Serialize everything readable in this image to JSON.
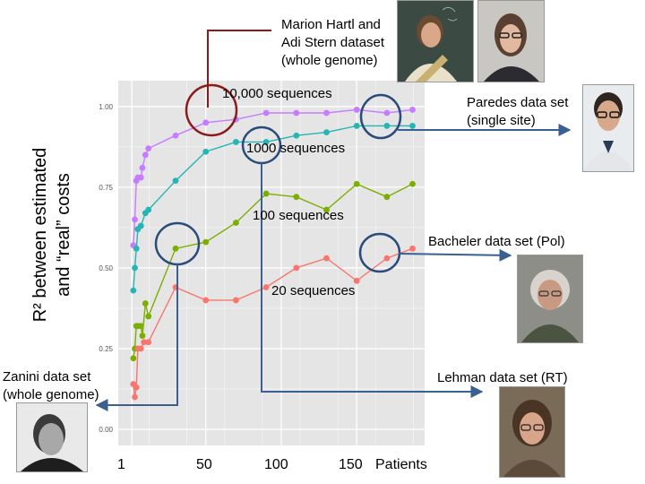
{
  "chart_data": {
    "type": "line",
    "ylabel_line1": "R² between estimated",
    "ylabel_line2": "and “real” costs",
    "xlabel": "Patients",
    "x_ticks": [
      1,
      50,
      100,
      150
    ],
    "y_ticks": [
      "0.00",
      "0.25",
      "0.50",
      "0.75",
      "1.00"
    ],
    "xlim": [
      -8,
      195
    ],
    "ylim": [
      -0.05,
      1.08
    ],
    "grid": true,
    "series": [
      {
        "name": "10,000 sequences",
        "color": "#c77cff",
        "points": [
          [
            2,
            0.57
          ],
          [
            3,
            0.65
          ],
          [
            4,
            0.77
          ],
          [
            5,
            0.78
          ],
          [
            7,
            0.78
          ],
          [
            8,
            0.81
          ],
          [
            10,
            0.85
          ],
          [
            12,
            0.87
          ],
          [
            30,
            0.91
          ],
          [
            50,
            0.95
          ],
          [
            70,
            0.96
          ],
          [
            90,
            0.98
          ],
          [
            110,
            0.98
          ],
          [
            130,
            0.98
          ],
          [
            150,
            0.99
          ],
          [
            170,
            0.98
          ],
          [
            187,
            0.99
          ]
        ]
      },
      {
        "name": "1000 sequences",
        "color": "#26b5b5",
        "points": [
          [
            2,
            0.43
          ],
          [
            3,
            0.5
          ],
          [
            4,
            0.56
          ],
          [
            5,
            0.62
          ],
          [
            7,
            0.63
          ],
          [
            10,
            0.67
          ],
          [
            12,
            0.68
          ],
          [
            30,
            0.77
          ],
          [
            50,
            0.86
          ],
          [
            70,
            0.89
          ],
          [
            90,
            0.89
          ],
          [
            110,
            0.91
          ],
          [
            130,
            0.92
          ],
          [
            150,
            0.94
          ],
          [
            170,
            0.94
          ],
          [
            187,
            0.94
          ]
        ]
      },
      {
        "name": "100 sequences",
        "color": "#7cae00",
        "points": [
          [
            2,
            0.22
          ],
          [
            3,
            0.25
          ],
          [
            4,
            0.32
          ],
          [
            5,
            0.32
          ],
          [
            7,
            0.32
          ],
          [
            8,
            0.29
          ],
          [
            10,
            0.39
          ],
          [
            12,
            0.35
          ],
          [
            30,
            0.56
          ],
          [
            50,
            0.58
          ],
          [
            70,
            0.64
          ],
          [
            90,
            0.73
          ],
          [
            110,
            0.72
          ],
          [
            130,
            0.68
          ],
          [
            150,
            0.76
          ],
          [
            170,
            0.72
          ],
          [
            187,
            0.76
          ]
        ]
      },
      {
        "name": "20 sequences",
        "color": "#f8766d",
        "points": [
          [
            2,
            0.14
          ],
          [
            3,
            0.1
          ],
          [
            4,
            0.13
          ],
          [
            5,
            0.25
          ],
          [
            7,
            0.25
          ],
          [
            9,
            0.27
          ],
          [
            12,
            0.27
          ],
          [
            30,
            0.44
          ],
          [
            50,
            0.4
          ],
          [
            70,
            0.4
          ],
          [
            90,
            0.44
          ],
          [
            110,
            0.5
          ],
          [
            130,
            0.53
          ],
          [
            150,
            0.46
          ],
          [
            170,
            0.53
          ],
          [
            187,
            0.56
          ]
        ]
      }
    ]
  },
  "annotations": {
    "hartl_stern": [
      "Marion Hartl and",
      "Adi Stern dataset",
      "(whole genome)"
    ],
    "paredes": [
      "Paredes data set",
      "(single site)"
    ],
    "bacheler": [
      "Bacheler data set (Pol)"
    ],
    "zanini": [
      "Zanini data set",
      "(whole genome)"
    ],
    "lehman": [
      "Lehman data set (RT)"
    ]
  },
  "colors": {
    "panel_bg": "#e5e5e5",
    "grid": "#ffffff",
    "circle_blue": "#2a4b7c",
    "circle_red": "#8b1a1a",
    "arrow_blue": "#3a5f92"
  },
  "icons": [
    "hartl-photo",
    "stern-photo",
    "paredes-photo",
    "bacheler-photo",
    "zanini-photo",
    "lehman-photo"
  ]
}
